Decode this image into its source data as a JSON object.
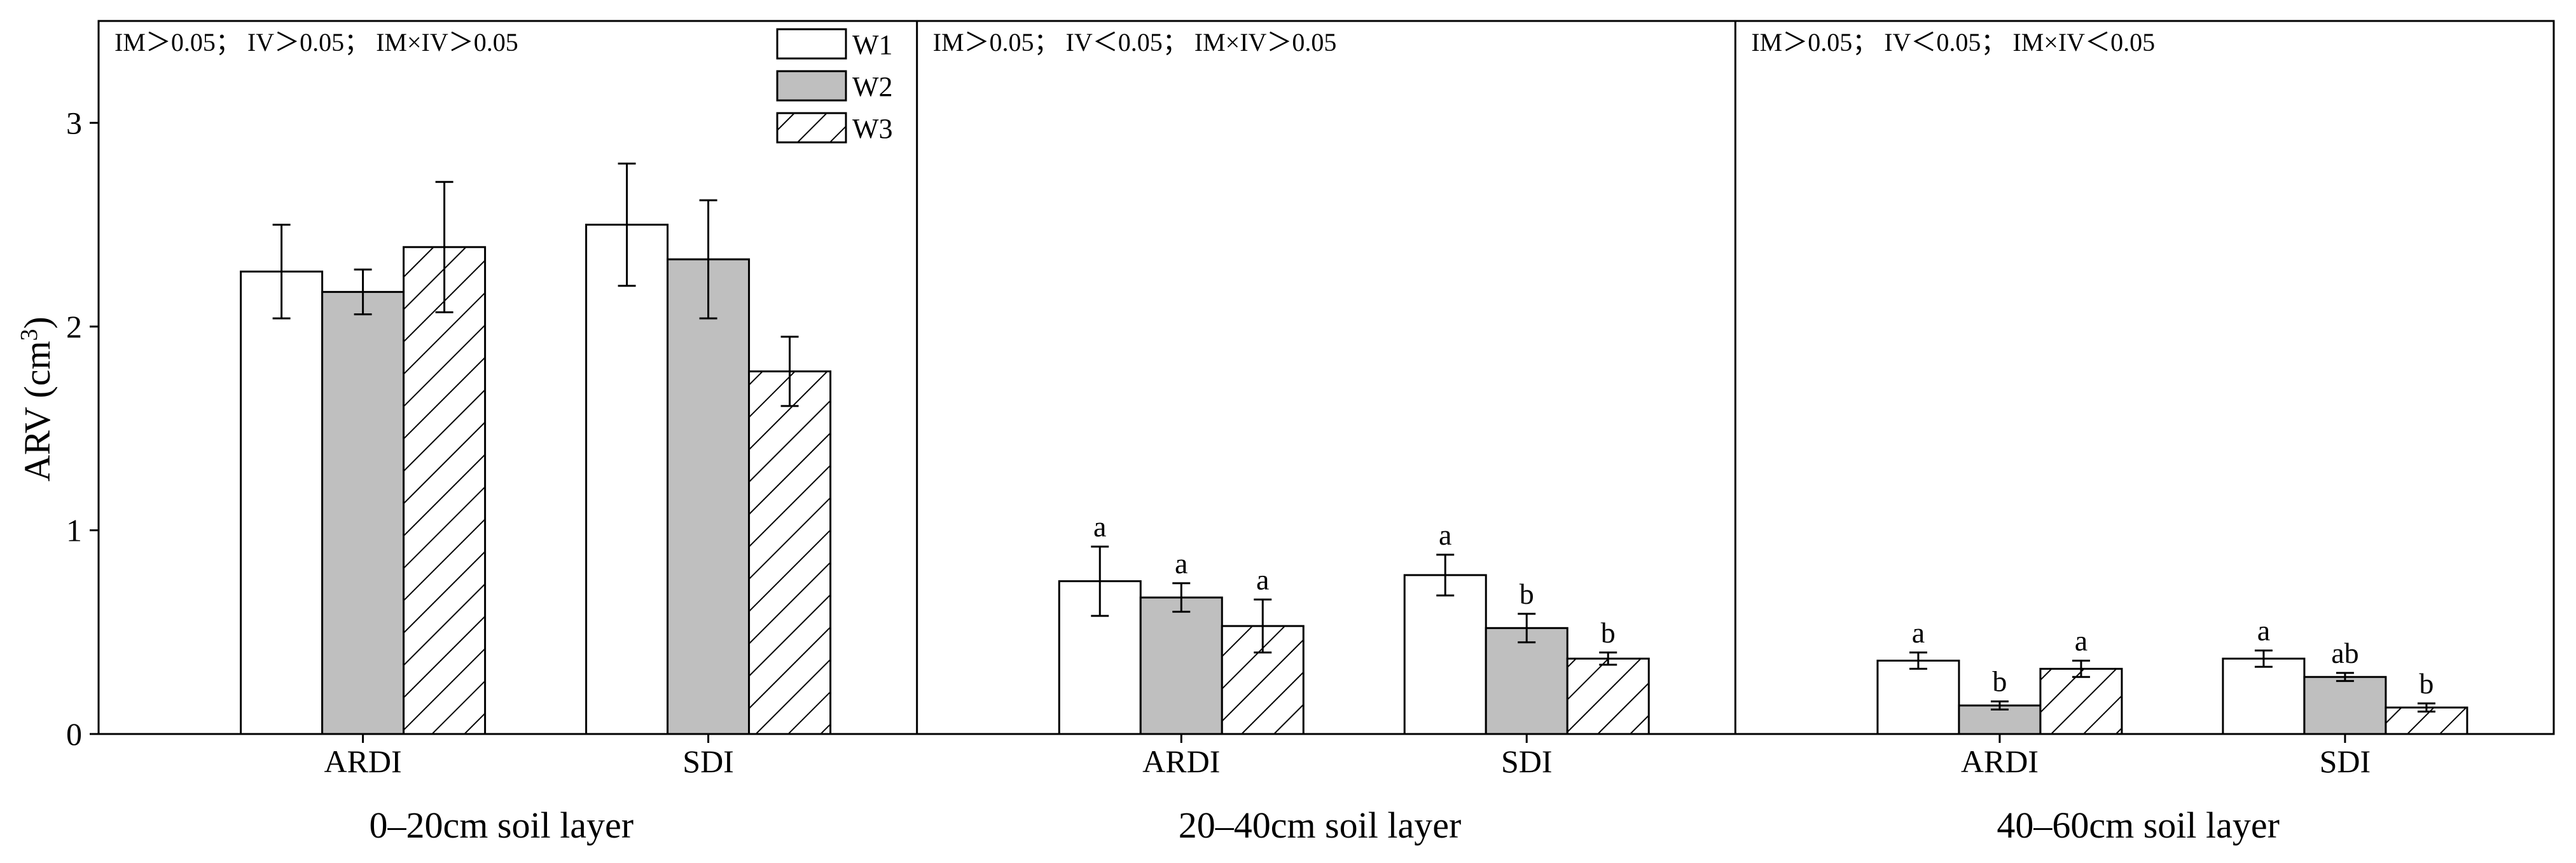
{
  "chart_data": {
    "type": "bar",
    "ylabel": "ARV (cm",
    "ylabel_sup": "3",
    "ylabel_end": ")",
    "ylim": [
      0,
      3.5
    ],
    "yticks": [
      "0",
      "1",
      "2",
      "3"
    ],
    "legend": {
      "position": "top-left",
      "entries": [
        {
          "name": "W1",
          "fill": "#ffffff",
          "pattern": "none"
        },
        {
          "name": "W2",
          "fill": "#bfbfbf",
          "pattern": "none"
        },
        {
          "name": "W3",
          "fill": "#ffffff",
          "pattern": "hatch"
        }
      ]
    },
    "panels": [
      {
        "title": "0–20cm soil layer",
        "stat_text": "IM＞0.05； IV＞0.05； IM×IV＞0.05",
        "categories": [
          "ARDI",
          "SDI"
        ],
        "series": [
          {
            "name": "W1",
            "values": [
              2.27,
              2.5
            ],
            "errors": [
              0.23,
              0.3
            ],
            "labels": [
              "",
              ""
            ]
          },
          {
            "name": "W2",
            "values": [
              2.17,
              2.33
            ],
            "errors": [
              0.11,
              0.29
            ],
            "labels": [
              "",
              ""
            ]
          },
          {
            "name": "W3",
            "values": [
              2.39,
              1.78
            ],
            "errors": [
              0.32,
              0.17
            ],
            "labels": [
              "",
              ""
            ]
          }
        ]
      },
      {
        "title": "20–40cm soil layer",
        "stat_text": "IM＞0.05； IV＜0.05； IM×IV＞0.05",
        "categories": [
          "ARDI",
          "SDI"
        ],
        "series": [
          {
            "name": "W1",
            "values": [
              0.75,
              0.78
            ],
            "errors": [
              0.17,
              0.1
            ],
            "labels": [
              "a",
              "a"
            ]
          },
          {
            "name": "W2",
            "values": [
              0.67,
              0.52
            ],
            "errors": [
              0.07,
              0.07
            ],
            "labels": [
              "a",
              "b"
            ]
          },
          {
            "name": "W3",
            "values": [
              0.53,
              0.37
            ],
            "errors": [
              0.13,
              0.03
            ],
            "labels": [
              "a",
              "b"
            ]
          }
        ]
      },
      {
        "title": "40–60cm soil layer",
        "stat_text": "IM＞0.05； IV＜0.05； IM×IV＜0.05",
        "categories": [
          "ARDI",
          "SDI"
        ],
        "series": [
          {
            "name": "W1",
            "values": [
              0.36,
              0.37
            ],
            "errors": [
              0.04,
              0.04
            ],
            "labels": [
              "a",
              "a"
            ]
          },
          {
            "name": "W2",
            "values": [
              0.14,
              0.28
            ],
            "errors": [
              0.02,
              0.02
            ],
            "labels": [
              "b",
              "ab"
            ]
          },
          {
            "name": "W3",
            "values": [
              0.32,
              0.13
            ],
            "errors": [
              0.04,
              0.02
            ],
            "labels": [
              "a",
              "b"
            ]
          }
        ]
      }
    ]
  }
}
